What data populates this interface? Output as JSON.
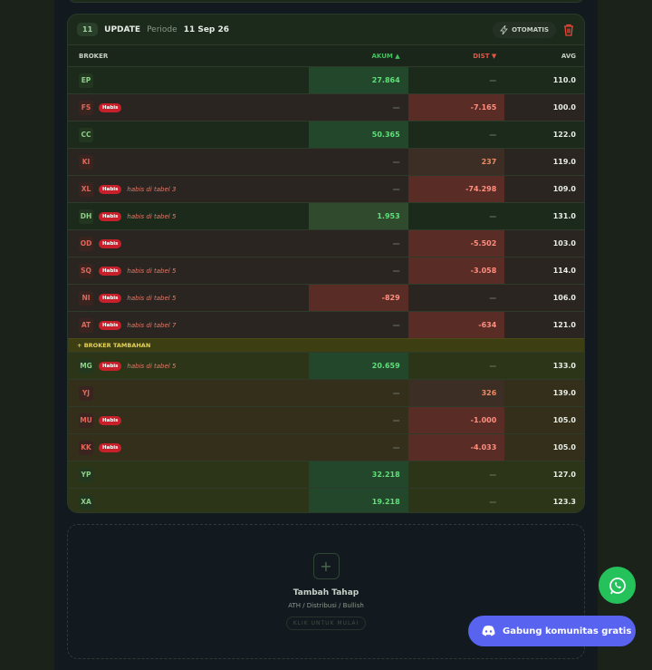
{
  "header": {
    "step": "11",
    "label": "UPDATE",
    "period_label": "Periode",
    "period": "11 Sep 26",
    "mode": "OTOMATIS"
  },
  "table": {
    "columns": [
      "BROKER",
      "AKUM ▲",
      "DIST ▼",
      "AVG"
    ],
    "rows": [
      {
        "broker": "EP",
        "akum": "27.864",
        "dist": "—",
        "avg": "110.0"
      },
      {
        "broker": "FS",
        "badge": "Habis",
        "akum": "—",
        "dist": "-7.165",
        "avg": "100.0"
      },
      {
        "broker": "CC",
        "akum": "50.365",
        "dist": "—",
        "avg": "122.0"
      },
      {
        "broker": "KI",
        "akum": "—",
        "dist": "237",
        "avg": "119.0"
      },
      {
        "broker": "XL",
        "badge": "Habis",
        "note": "habis di tabel 3",
        "akum": "—",
        "dist": "-74.298",
        "avg": "109.0"
      },
      {
        "broker": "DH",
        "badge": "Habis",
        "note": "habis di tabel 5",
        "akum": "1.953",
        "dist": "—",
        "avg": "131.0"
      },
      {
        "broker": "OD",
        "badge": "Habis",
        "akum": "—",
        "dist": "-5.502",
        "avg": "103.0"
      },
      {
        "broker": "SQ",
        "badge": "Habis",
        "note": "habis di tabel 5",
        "akum": "—",
        "dist": "-3.058",
        "avg": "114.0"
      },
      {
        "broker": "NI",
        "badge": "Habis",
        "note": "habis di tabel 5",
        "akum": "-829",
        "dist": "—",
        "avg": "106.0"
      },
      {
        "broker": "AT",
        "badge": "Habis",
        "note": "habis di tabel 7",
        "akum": "—",
        "dist": "-634",
        "avg": "121.0"
      }
    ],
    "section": "+ BROKER TAMBAHAN",
    "extra_rows": [
      {
        "broker": "MG",
        "badge": "Habis",
        "note": "habis di tabel 5",
        "akum": "20.659",
        "dist": "—",
        "avg": "133.0"
      },
      {
        "broker": "YJ",
        "akum": "—",
        "dist": "326",
        "avg": "139.0"
      },
      {
        "broker": "MU",
        "badge": "Habis",
        "akum": "—",
        "dist": "-1.000",
        "avg": "105.0"
      },
      {
        "broker": "KK",
        "badge": "Habis",
        "akum": "—",
        "dist": "-4.033",
        "avg": "105.0"
      },
      {
        "broker": "YP",
        "akum": "32.218",
        "dist": "—",
        "avg": "127.0"
      },
      {
        "broker": "XA",
        "akum": "19.218",
        "dist": "—",
        "avg": "123.3"
      }
    ]
  },
  "add_stage": {
    "title": "Tambah Tahap",
    "subtitle": "ATH / Distribusi / Bullish",
    "action": "KLIK UNTUK MULAI"
  },
  "community": {
    "label": "Gabung komunitas gratis"
  }
}
